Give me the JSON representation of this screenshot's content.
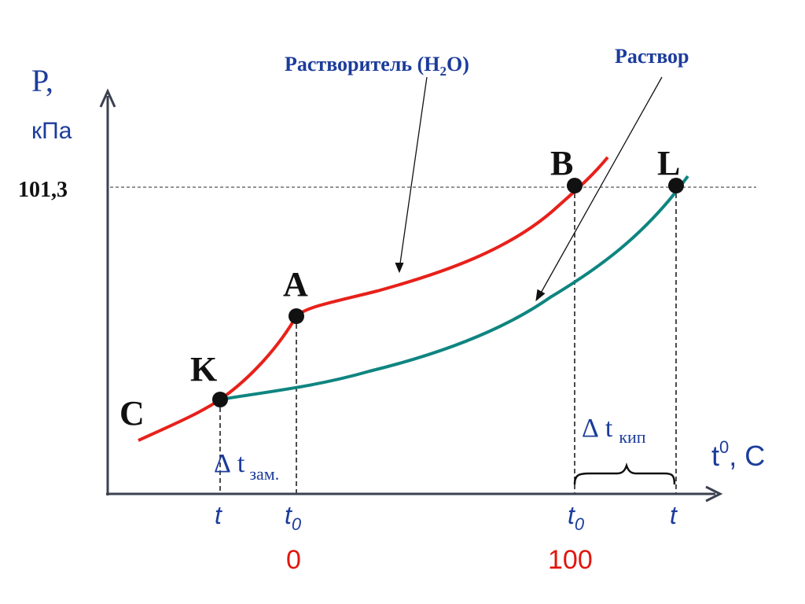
{
  "colors": {
    "solvent_curve": "#e8201a",
    "solution_curve": "#0e8580",
    "axis_text_blue": "#1c3c9c",
    "red_text": "#e0160e",
    "black": "#111111"
  },
  "labels": {
    "solvent_prefix": "Растворитель (H",
    "solvent_sub": "2",
    "solvent_suffix": "O)",
    "solution": "Раствор",
    "y_axis_label_p": "P,",
    "y_axis_label_unit": "кПа",
    "x_axis_label": "t",
    "x_axis_label_sup": "0",
    "x_axis_label_unit": ", C",
    "pressure_value": "101,3",
    "delta": "Δ",
    "t_letter": "t",
    "zam_sub": "зам.",
    "kip_sub": "кип",
    "point_B": "B",
    "point_L": "L",
    "point_A": "A",
    "point_K": "K",
    "point_C": "C",
    "tick_t": "t",
    "tick_t0": "t",
    "tick_t0_sub": "0",
    "value_0": "0",
    "value_100": "100"
  }
}
